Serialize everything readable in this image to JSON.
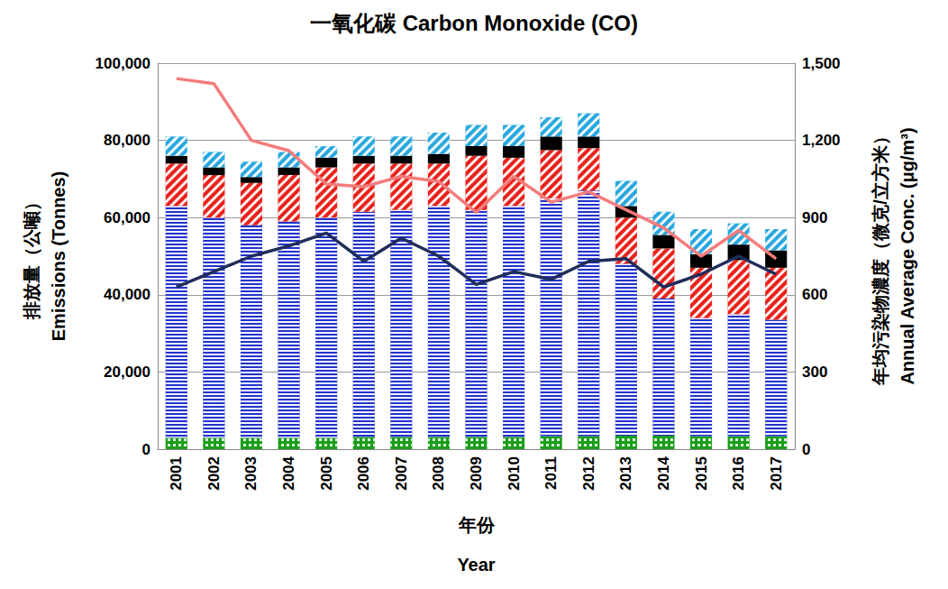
{
  "chart_data": {
    "type": "bar",
    "title": "一氧化碳 Carbon Monoxide (CO)",
    "xlabel": "年份\nYear",
    "ylabel": "排放量（公噸）\nEmissions (Tonnes)",
    "y2label": "年均污染物濃度（微克/立方米）\nAnnual Average Conc. (μg/m³)",
    "categories": [
      "2001",
      "2002",
      "2003",
      "2004",
      "2005",
      "2006",
      "2007",
      "2008",
      "2009",
      "2010",
      "2011",
      "2012",
      "2013",
      "2014",
      "2015",
      "2016",
      "2017"
    ],
    "stacked": true,
    "grid": true,
    "ylim": [
      0,
      100000
    ],
    "yticks": [
      0,
      {
        "value": 20000,
        "label": "20,000"
      },
      {
        "value": 40000,
        "label": "40,000"
      },
      {
        "value": 60000,
        "label": "60,000"
      },
      {
        "value": 80000,
        "label": "80,000"
      },
      {
        "value": 100000,
        "label": "100,000"
      }
    ],
    "y2lim": [
      0,
      1500
    ],
    "y2ticks": [
      0,
      300,
      600,
      900,
      {
        "value": 1200,
        "label": "1,200"
      },
      {
        "value": 1500,
        "label": "1,500"
      }
    ],
    "series": [
      {
        "type": "bar",
        "color": "#1a9e1a",
        "values": [
          3000,
          3000,
          3000,
          3000,
          3000,
          3200,
          3200,
          3200,
          3200,
          3200,
          3400,
          3400,
          3500,
          3500,
          3400,
          3400,
          3400
        ]
      },
      {
        "type": "bar",
        "color": "#2233cc",
        "values": [
          60000,
          57000,
          55000,
          56000,
          57000,
          58300,
          58800,
          59800,
          58800,
          59800,
          61600,
          63600,
          44500,
          35500,
          30600,
          31600,
          30100
        ]
      },
      {
        "type": "bar",
        "color": "#e8231c",
        "values": [
          11000,
          11000,
          11000,
          12000,
          13000,
          12500,
          12000,
          11000,
          14000,
          12500,
          12500,
          11000,
          12000,
          13000,
          13000,
          14000,
          13500
        ]
      },
      {
        "type": "bar",
        "color": "#000000",
        "values": [
          2000,
          2000,
          1500,
          2000,
          2500,
          2000,
          2000,
          2500,
          2500,
          3000,
          3500,
          3000,
          3000,
          3500,
          3500,
          4000,
          4500
        ]
      },
      {
        "type": "bar",
        "color": "#29a8e0",
        "values": [
          5000,
          4000,
          4000,
          4000,
          3000,
          5000,
          5000,
          5500,
          5500,
          5500,
          5000,
          6000,
          6500,
          6000,
          6500,
          5500,
          5500
        ]
      },
      {
        "type": "line",
        "axis": "y2",
        "color": "#f47c7c",
        "line_style": "solid",
        "values": [
          1440,
          1420,
          1200,
          1160,
          1030,
          1020,
          1060,
          1040,
          920,
          1060,
          960,
          1000,
          930,
          860,
          750,
          850,
          740
        ]
      },
      {
        "type": "line",
        "axis": "y2",
        "color": "#1f2d5a",
        "line_style": "solid",
        "values": [
          630,
          690,
          750,
          790,
          840,
          730,
          820,
          750,
          640,
          690,
          660,
          730,
          740,
          630,
          680,
          750,
          680
        ]
      }
    ]
  }
}
